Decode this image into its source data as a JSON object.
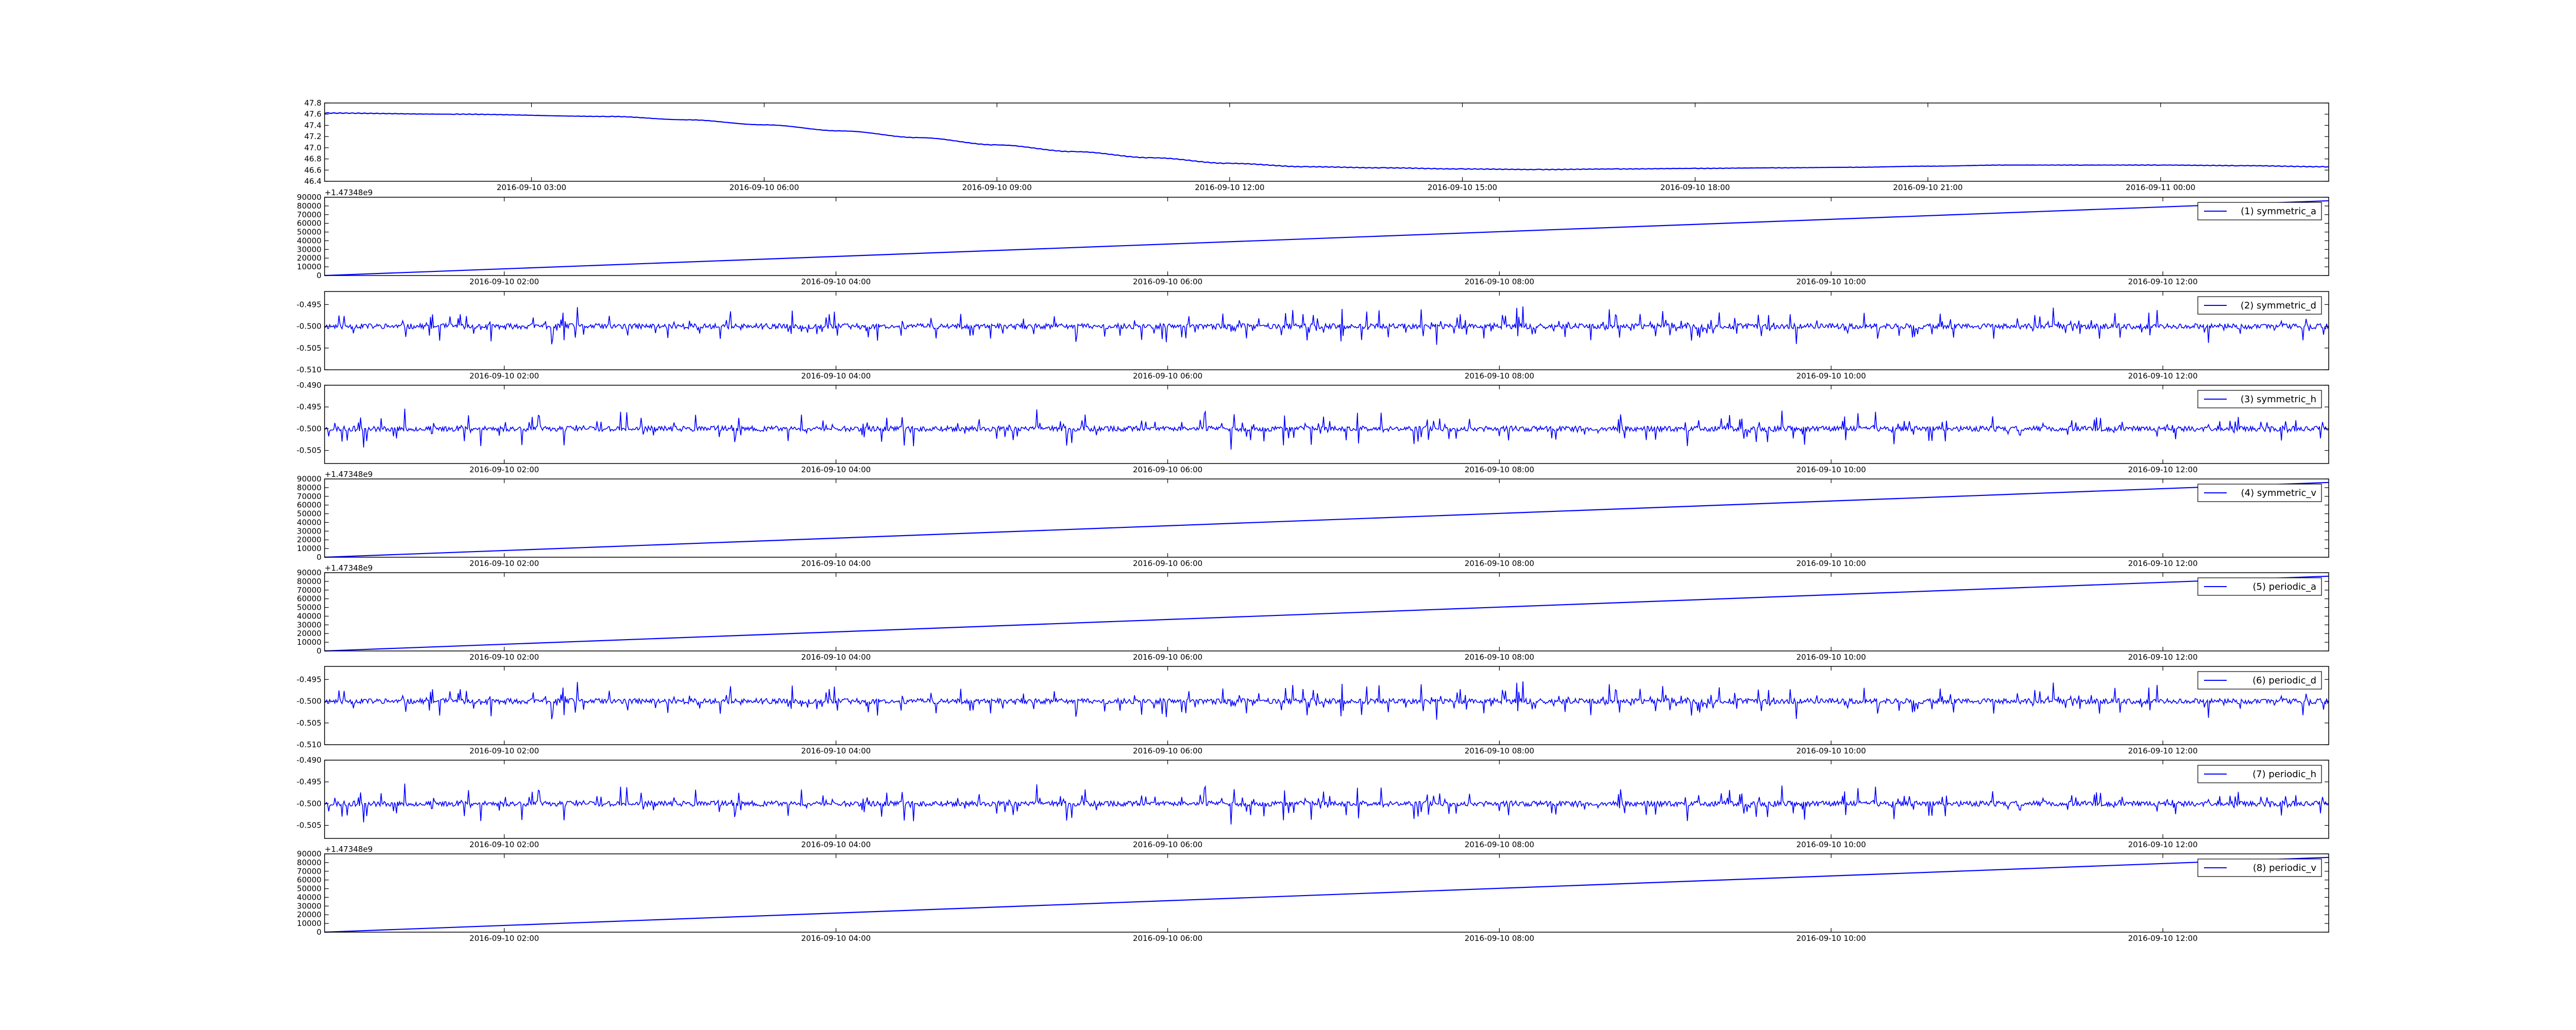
{
  "colors": {
    "line": "#0000ff",
    "axes": "#000000",
    "legend_border": "#000000",
    "background": "#ffffff"
  },
  "chart_data": [
    {
      "type": "line",
      "name": "",
      "x_type": "datetime",
      "x_range": [
        "2016-09-10 00:20",
        "2016-09-11 02:10"
      ],
      "ylim": [
        46.4,
        47.8
      ],
      "yticks": [
        "46.4",
        "46.6",
        "46.8",
        "47.0",
        "47.2",
        "47.4",
        "47.6",
        "47.8"
      ],
      "xticks": [
        "2016-09-10 03:00",
        "2016-09-10 06:00",
        "2016-09-10 09:00",
        "2016-09-10 12:00",
        "2016-09-10 15:00",
        "2016-09-10 18:00",
        "2016-09-10 21:00",
        "2016-09-11 00:00"
      ],
      "offset_text": "",
      "grid": false,
      "legend": null,
      "series": [
        {
          "x": [
            "2016-09-10 00:20",
            "2016-09-10 02:00",
            "2016-09-10 04:00",
            "2016-09-10 05:00",
            "2016-09-10 06:00",
            "2016-09-10 07:00",
            "2016-09-10 08:00",
            "2016-09-10 09:00",
            "2016-09-10 10:00",
            "2016-09-10 11:00",
            "2016-09-10 12:00",
            "2016-09-10 13:00",
            "2016-09-10 14:00",
            "2016-09-10 15:00",
            "2016-09-10 16:00",
            "2016-09-10 17:00",
            "2016-09-10 18:00",
            "2016-09-10 19:00",
            "2016-09-10 20:00",
            "2016-09-10 21:00",
            "2016-09-10 22:00",
            "2016-09-10 23:00",
            "2016-09-11 00:00",
            "2016-09-11 01:00",
            "2016-09-11 02:10"
          ],
          "y": [
            47.62,
            47.6,
            47.56,
            47.5,
            47.41,
            47.3,
            47.18,
            47.05,
            46.93,
            46.82,
            46.72,
            46.66,
            46.64,
            46.62,
            46.61,
            46.62,
            46.63,
            46.64,
            46.65,
            46.67,
            46.69,
            46.69,
            46.69,
            46.68,
            46.66
          ]
        }
      ]
    },
    {
      "type": "line",
      "name": "symmetric_a",
      "x_type": "datetime",
      "x_range": [
        "2016-09-10 00:55",
        "2016-09-10 13:00"
      ],
      "ylim": [
        0,
        90000
      ],
      "yticks": [
        "0",
        "10000",
        "20000",
        "30000",
        "40000",
        "50000",
        "60000",
        "70000",
        "80000",
        "90000"
      ],
      "xticks": [
        "2016-09-10 02:00",
        "2016-09-10 04:00",
        "2016-09-10 06:00",
        "2016-09-10 08:00",
        "2016-09-10 10:00",
        "2016-09-10 12:00"
      ],
      "offset_text": "+1.47348e9",
      "grid": false,
      "legend": {
        "label": "(1) symmetric_a",
        "position": "top-right"
      },
      "series": [
        {
          "kind": "linear",
          "y_start": 0,
          "y_end": 86000
        }
      ]
    },
    {
      "type": "line",
      "name": "symmetric_d",
      "x_type": "datetime",
      "x_range": [
        "2016-09-10 00:55",
        "2016-09-10 13:00"
      ],
      "ylim": [
        -0.51,
        -0.492
      ],
      "yticks": [
        "-0.510",
        "-0.505",
        "-0.500",
        "-0.495"
      ],
      "xticks": [
        "2016-09-10 02:00",
        "2016-09-10 04:00",
        "2016-09-10 06:00",
        "2016-09-10 08:00",
        "2016-09-10 10:00",
        "2016-09-10 12:00"
      ],
      "offset_text": "",
      "grid": false,
      "legend": {
        "label": "(2) symmetric_d",
        "position": "top-right"
      },
      "series": [
        {
          "kind": "noise",
          "center": -0.5,
          "amplitude": 0.0035,
          "seed": 11
        }
      ]
    },
    {
      "type": "line",
      "name": "symmetric_h",
      "x_type": "datetime",
      "x_range": [
        "2016-09-10 00:55",
        "2016-09-10 13:00"
      ],
      "ylim": [
        -0.508,
        -0.49
      ],
      "yticks": [
        "-0.505",
        "-0.500",
        "-0.495",
        "-0.490"
      ],
      "xticks": [
        "2016-09-10 02:00",
        "2016-09-10 04:00",
        "2016-09-10 06:00",
        "2016-09-10 08:00",
        "2016-09-10 10:00",
        "2016-09-10 12:00"
      ],
      "offset_text": "",
      "grid": false,
      "legend": {
        "label": "(3) symmetric_h",
        "position": "top-right"
      },
      "series": [
        {
          "kind": "noise",
          "center": -0.5,
          "amplitude": 0.0035,
          "seed": 23
        }
      ]
    },
    {
      "type": "line",
      "name": "symmetric_v",
      "x_type": "datetime",
      "x_range": [
        "2016-09-10 00:55",
        "2016-09-10 13:00"
      ],
      "ylim": [
        0,
        90000
      ],
      "yticks": [
        "0",
        "10000",
        "20000",
        "30000",
        "40000",
        "50000",
        "60000",
        "70000",
        "80000",
        "90000"
      ],
      "xticks": [
        "2016-09-10 02:00",
        "2016-09-10 04:00",
        "2016-09-10 06:00",
        "2016-09-10 08:00",
        "2016-09-10 10:00",
        "2016-09-10 12:00"
      ],
      "offset_text": "+1.47348e9",
      "grid": false,
      "legend": {
        "label": "(4) symmetric_v",
        "position": "top-right"
      },
      "series": [
        {
          "kind": "linear",
          "y_start": 0,
          "y_end": 86000
        }
      ]
    },
    {
      "type": "line",
      "name": "periodic_a",
      "x_type": "datetime",
      "x_range": [
        "2016-09-10 00:55",
        "2016-09-10 13:00"
      ],
      "ylim": [
        0,
        90000
      ],
      "yticks": [
        "0",
        "10000",
        "20000",
        "30000",
        "40000",
        "50000",
        "60000",
        "70000",
        "80000",
        "90000"
      ],
      "xticks": [
        "2016-09-10 02:00",
        "2016-09-10 04:00",
        "2016-09-10 06:00",
        "2016-09-10 08:00",
        "2016-09-10 10:00",
        "2016-09-10 12:00"
      ],
      "offset_text": "+1.47348e9",
      "grid": false,
      "legend": {
        "label": "(5) periodic_a",
        "position": "top-right"
      },
      "series": [
        {
          "kind": "linear",
          "y_start": 0,
          "y_end": 86000
        }
      ]
    },
    {
      "type": "line",
      "name": "periodic_d",
      "x_type": "datetime",
      "x_range": [
        "2016-09-10 00:55",
        "2016-09-10 13:00"
      ],
      "ylim": [
        -0.51,
        -0.492
      ],
      "yticks": [
        "-0.510",
        "-0.505",
        "-0.500",
        "-0.495"
      ],
      "xticks": [
        "2016-09-10 02:00",
        "2016-09-10 04:00",
        "2016-09-10 06:00",
        "2016-09-10 08:00",
        "2016-09-10 10:00",
        "2016-09-10 12:00"
      ],
      "offset_text": "",
      "grid": false,
      "legend": {
        "label": "(6) periodic_d",
        "position": "top-right"
      },
      "series": [
        {
          "kind": "noise",
          "center": -0.5,
          "amplitude": 0.0035,
          "seed": 11
        }
      ]
    },
    {
      "type": "line",
      "name": "periodic_h",
      "x_type": "datetime",
      "x_range": [
        "2016-09-10 00:55",
        "2016-09-10 13:00"
      ],
      "ylim": [
        -0.508,
        -0.49
      ],
      "yticks": [
        "-0.505",
        "-0.500",
        "-0.495",
        "-0.490"
      ],
      "xticks": [
        "2016-09-10 02:00",
        "2016-09-10 04:00",
        "2016-09-10 06:00",
        "2016-09-10 08:00",
        "2016-09-10 10:00",
        "2016-09-10 12:00"
      ],
      "offset_text": "",
      "grid": false,
      "legend": {
        "label": "(7) periodic_h",
        "position": "top-right"
      },
      "series": [
        {
          "kind": "noise",
          "center": -0.5,
          "amplitude": 0.0035,
          "seed": 23
        }
      ]
    },
    {
      "type": "line",
      "name": "periodic_v",
      "x_type": "datetime",
      "x_range": [
        "2016-09-10 00:55",
        "2016-09-10 13:00"
      ],
      "ylim": [
        0,
        90000
      ],
      "yticks": [
        "0",
        "10000",
        "20000",
        "30000",
        "40000",
        "50000",
        "60000",
        "70000",
        "80000",
        "90000"
      ],
      "xticks": [
        "2016-09-10 02:00",
        "2016-09-10 04:00",
        "2016-09-10 06:00",
        "2016-09-10 08:00",
        "2016-09-10 10:00",
        "2016-09-10 12:00"
      ],
      "offset_text": "+1.47348e9",
      "grid": false,
      "legend": {
        "label": "(8) periodic_v",
        "position": "top-right"
      },
      "series": [
        {
          "kind": "linear",
          "y_start": 0,
          "y_end": 86000
        }
      ]
    }
  ]
}
